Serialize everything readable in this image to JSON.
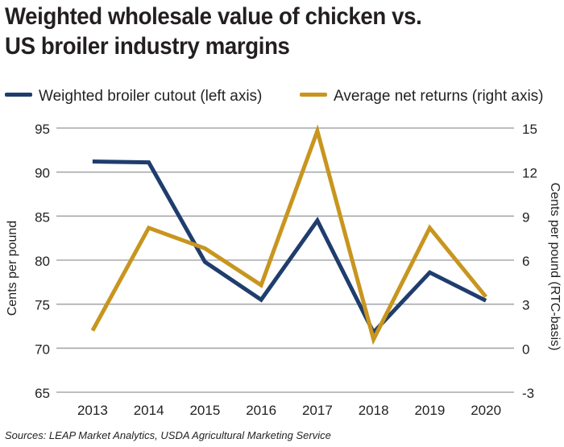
{
  "title_line1": "Weighted wholesale value of chicken vs.",
  "title_line2": "US broiler industry margins",
  "source": "Sources: LEAP Market Analytics, USDA Agricultural Marketing Service",
  "colors": {
    "series_left": "#1f3d6d",
    "series_right": "#c8951f",
    "grid": "#a7a9ac",
    "text": "#231f20"
  },
  "chart_data": {
    "type": "line",
    "categories": [
      "2013",
      "2014",
      "2015",
      "2016",
      "2017",
      "2018",
      "2019",
      "2020"
    ],
    "series": [
      {
        "name": "Weighted broiler cutout (left axis)",
        "axis": "left",
        "values": [
          91.2,
          91.1,
          79.8,
          75.5,
          84.5,
          71.8,
          78.6,
          75.4
        ]
      },
      {
        "name": "Average net returns (right axis)",
        "axis": "right",
        "values": [
          1.2,
          8.2,
          6.8,
          4.3,
          14.8,
          0.6,
          8.2,
          3.5
        ]
      }
    ],
    "ylabel_left": "Cents per pound",
    "ylabel_right": "Cents per pound (RTC-basis)",
    "ylim_left": [
      65,
      95
    ],
    "ylim_right": [
      -3,
      15
    ],
    "yticks_left": [
      65,
      70,
      75,
      80,
      85,
      90,
      95
    ],
    "yticks_right": [
      -3,
      0,
      3,
      6,
      9,
      12,
      15
    ],
    "grid": "horizontal",
    "legend_position": "top"
  }
}
